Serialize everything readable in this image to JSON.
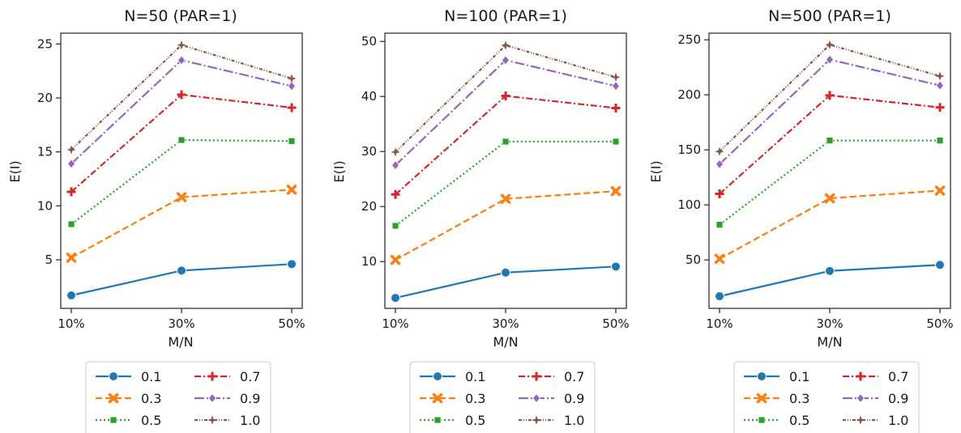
{
  "chart_data": [
    {
      "type": "line",
      "title": "N=50 (PAR=1)",
      "xlabel": "M/N",
      "ylabel": "E(I)",
      "categories": [
        "10%",
        "30%",
        "50%"
      ],
      "ylim": [
        0.5,
        26
      ],
      "yticks": [
        5,
        10,
        15,
        20,
        25
      ],
      "legend_position": "below",
      "series": [
        {
          "name": "0.1",
          "values": [
            1.7,
            4.0,
            4.6
          ]
        },
        {
          "name": "0.3",
          "values": [
            5.2,
            10.8,
            11.5
          ]
        },
        {
          "name": "0.5",
          "values": [
            8.3,
            16.1,
            16.0
          ]
        },
        {
          "name": "0.7",
          "values": [
            11.3,
            20.3,
            19.1
          ]
        },
        {
          "name": "0.9",
          "values": [
            13.9,
            23.5,
            21.1
          ]
        },
        {
          "name": "1.0",
          "values": [
            15.2,
            24.9,
            21.8
          ]
        }
      ]
    },
    {
      "type": "line",
      "title": "N=100 (PAR=1)",
      "xlabel": "M/N",
      "ylabel": "E(I)",
      "categories": [
        "10%",
        "30%",
        "50%"
      ],
      "ylim": [
        1.5,
        51.5
      ],
      "yticks": [
        10,
        20,
        30,
        40,
        50
      ],
      "legend_position": "below",
      "series": [
        {
          "name": "0.1",
          "values": [
            3.4,
            8.0,
            9.1
          ]
        },
        {
          "name": "0.3",
          "values": [
            10.3,
            21.4,
            22.8
          ]
        },
        {
          "name": "0.5",
          "values": [
            16.5,
            31.8,
            31.8
          ]
        },
        {
          "name": "0.7",
          "values": [
            22.2,
            40.1,
            37.9
          ]
        },
        {
          "name": "0.9",
          "values": [
            27.5,
            46.6,
            41.9
          ]
        },
        {
          "name": "1.0",
          "values": [
            29.9,
            49.3,
            43.5
          ]
        }
      ]
    },
    {
      "type": "line",
      "title": "N=500 (PAR=1)",
      "xlabel": "M/N",
      "ylabel": "E(I)",
      "categories": [
        "10%",
        "30%",
        "50%"
      ],
      "ylim": [
        6,
        256
      ],
      "yticks": [
        50,
        100,
        150,
        200,
        250
      ],
      "legend_position": "below",
      "series": [
        {
          "name": "0.1",
          "values": [
            17,
            40,
            45.5
          ]
        },
        {
          "name": "0.3",
          "values": [
            51,
            106,
            113
          ]
        },
        {
          "name": "0.5",
          "values": [
            82,
            158.5,
            158.5
          ]
        },
        {
          "name": "0.7",
          "values": [
            110,
            199.5,
            188.5
          ]
        },
        {
          "name": "0.9",
          "values": [
            137,
            232,
            208.5
          ]
        },
        {
          "name": "1.0",
          "values": [
            148.5,
            245.5,
            217
          ]
        }
      ]
    }
  ],
  "series_style": [
    {
      "color": "#1f77b4",
      "dash": "",
      "marker": "circle"
    },
    {
      "color": "#ff7f0e",
      "dash": "8,4",
      "marker": "x"
    },
    {
      "color": "#2ca02c",
      "dash": "2,3",
      "marker": "square"
    },
    {
      "color": "#d62728",
      "dash": "8,3,2,3",
      "marker": "plus"
    },
    {
      "color": "#9467bd",
      "dash": "12,3,2,3",
      "marker": "diamond"
    },
    {
      "color": "#8c564b",
      "dash": "4,2,1,2,1,2",
      "marker": "star"
    }
  ]
}
